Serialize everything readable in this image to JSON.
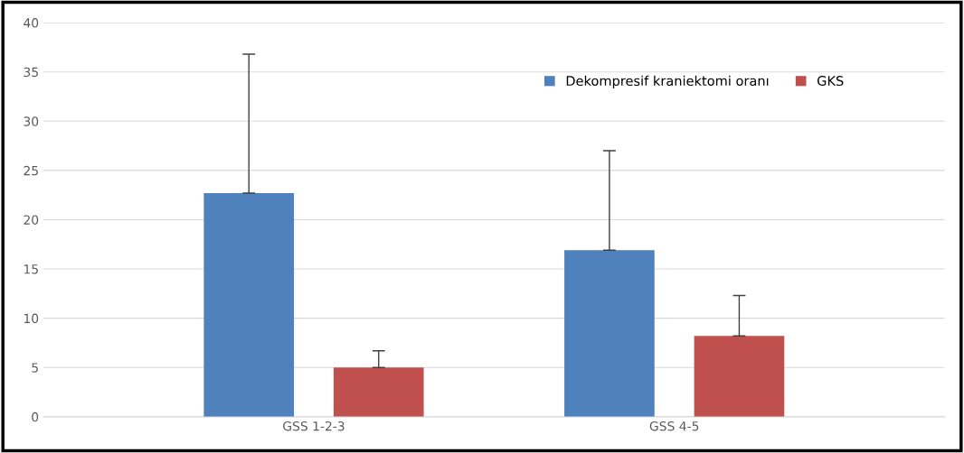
{
  "chart_data": {
    "type": "bar",
    "categories": [
      "GSS 1-2-3",
      "GSS 4-5"
    ],
    "series": [
      {
        "name": "Dekompresif kraniektomi oranı",
        "color": "#4f81bd",
        "values": [
          22.7,
          16.9
        ],
        "errors": [
          [
            22.7,
            36.8
          ],
          [
            16.9,
            27.0
          ]
        ]
      },
      {
        "name": "GKS",
        "color": "#c0504d",
        "values": [
          5.0,
          8.2
        ],
        "errors": [
          [
            5.0,
            6.7
          ],
          [
            8.2,
            12.3
          ]
        ]
      }
    ],
    "ylim": [
      0,
      40
    ],
    "yticks": [
      0,
      5,
      10,
      15,
      20,
      25,
      30,
      35,
      40
    ],
    "grid": "y",
    "legend": "top right"
  }
}
